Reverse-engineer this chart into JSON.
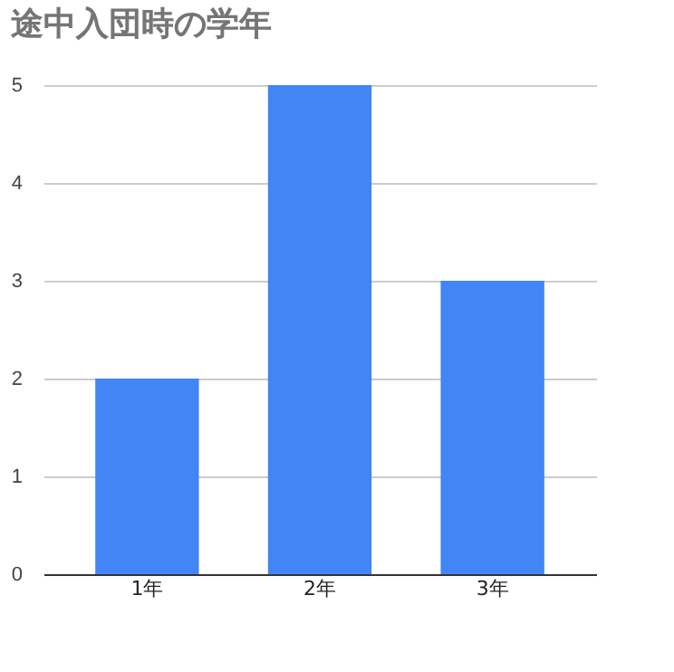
{
  "chart_data": {
    "type": "bar",
    "title": "途中入団時の学年",
    "categories": [
      "1年",
      "2年",
      "3年"
    ],
    "values": [
      2,
      5,
      3
    ],
    "color": "#4285f4",
    "ylim": [
      0,
      5
    ],
    "yticks": [
      0,
      1,
      2,
      3,
      4,
      5
    ],
    "grid": "y"
  }
}
